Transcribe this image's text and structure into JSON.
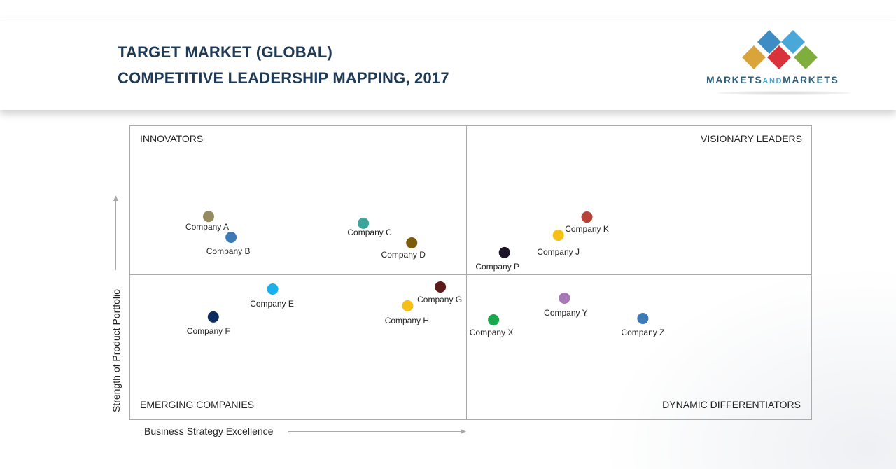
{
  "header": {
    "title_line1": "TARGET MARKET (GLOBAL)",
    "title_line2": "COMPETITIVE LEADERSHIP MAPPING, 2017",
    "logo_text_part1": "MARKETS",
    "logo_text_part2": "AND",
    "logo_text_part3": "MARKETS",
    "logo_colors": [
      "#d9a43a",
      "#3d8cc4",
      "#d9323a",
      "#4aa8d8",
      "#7fae3e"
    ]
  },
  "chart_data": {
    "type": "scatter",
    "xlabel": "Business Strategy Excellence",
    "ylabel": "Strength of Product Portfolio",
    "xlim": [
      0,
      100
    ],
    "ylim": [
      0,
      100
    ],
    "grid": false,
    "quadrants": {
      "top_left": "INNOVATORS",
      "top_right": "VISIONARY LEADERS",
      "bottom_left": "EMERGING COMPANIES",
      "bottom_right": "DYNAMIC DIFFERENTIATORS"
    },
    "points": [
      {
        "name": "Company A",
        "x": 11.6,
        "y": 69.0,
        "color": "#958b5e"
      },
      {
        "name": "Company B",
        "x": 14.9,
        "y": 61.9,
        "color": "#3d7ab8"
      },
      {
        "name": "Company C",
        "x": 34.3,
        "y": 66.7,
        "color": "#3aa59a"
      },
      {
        "name": "Company D",
        "x": 41.4,
        "y": 60.0,
        "color": "#7b5c0a"
      },
      {
        "name": "Company E",
        "x": 21.0,
        "y": 44.3,
        "color": "#1ab0ec"
      },
      {
        "name": "Company F",
        "x": 12.3,
        "y": 34.8,
        "color": "#0d2b5e"
      },
      {
        "name": "Company G",
        "x": 45.6,
        "y": 45.0,
        "color": "#5c1a1a"
      },
      {
        "name": "Company H",
        "x": 40.8,
        "y": 38.6,
        "color": "#f5c015"
      },
      {
        "name": "Company P",
        "x": 55.0,
        "y": 56.7,
        "color": "#1e1428"
      },
      {
        "name": "Company J",
        "x": 62.9,
        "y": 62.6,
        "color": "#f5c015"
      },
      {
        "name": "Company K",
        "x": 67.1,
        "y": 68.8,
        "color": "#b8413a"
      },
      {
        "name": "Company X",
        "x": 53.4,
        "y": 33.8,
        "color": "#1aa84f"
      },
      {
        "name": "Company Y",
        "x": 63.8,
        "y": 41.2,
        "color": "#a877b8"
      },
      {
        "name": "Company Z",
        "x": 75.3,
        "y": 34.3,
        "color": "#3d7ab8"
      }
    ]
  }
}
